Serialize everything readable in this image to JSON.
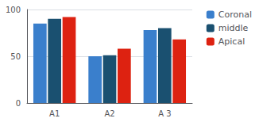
{
  "chart_data": {
    "type": "bar",
    "categories": [
      "A1",
      "A2",
      "A 3"
    ],
    "series": [
      {
        "name": "Coronal",
        "color": "#3A7FCC",
        "values": [
          85,
          50,
          78
        ]
      },
      {
        "name": "middle",
        "color": "#1A5070",
        "values": [
          90,
          51,
          80
        ]
      },
      {
        "name": "Apical",
        "color": "#DD2211",
        "values": [
          92,
          58,
          68
        ]
      }
    ],
    "ylim": [
      0,
      100
    ],
    "yticks": [
      0,
      50,
      100
    ],
    "grid": true,
    "legend": "right"
  }
}
